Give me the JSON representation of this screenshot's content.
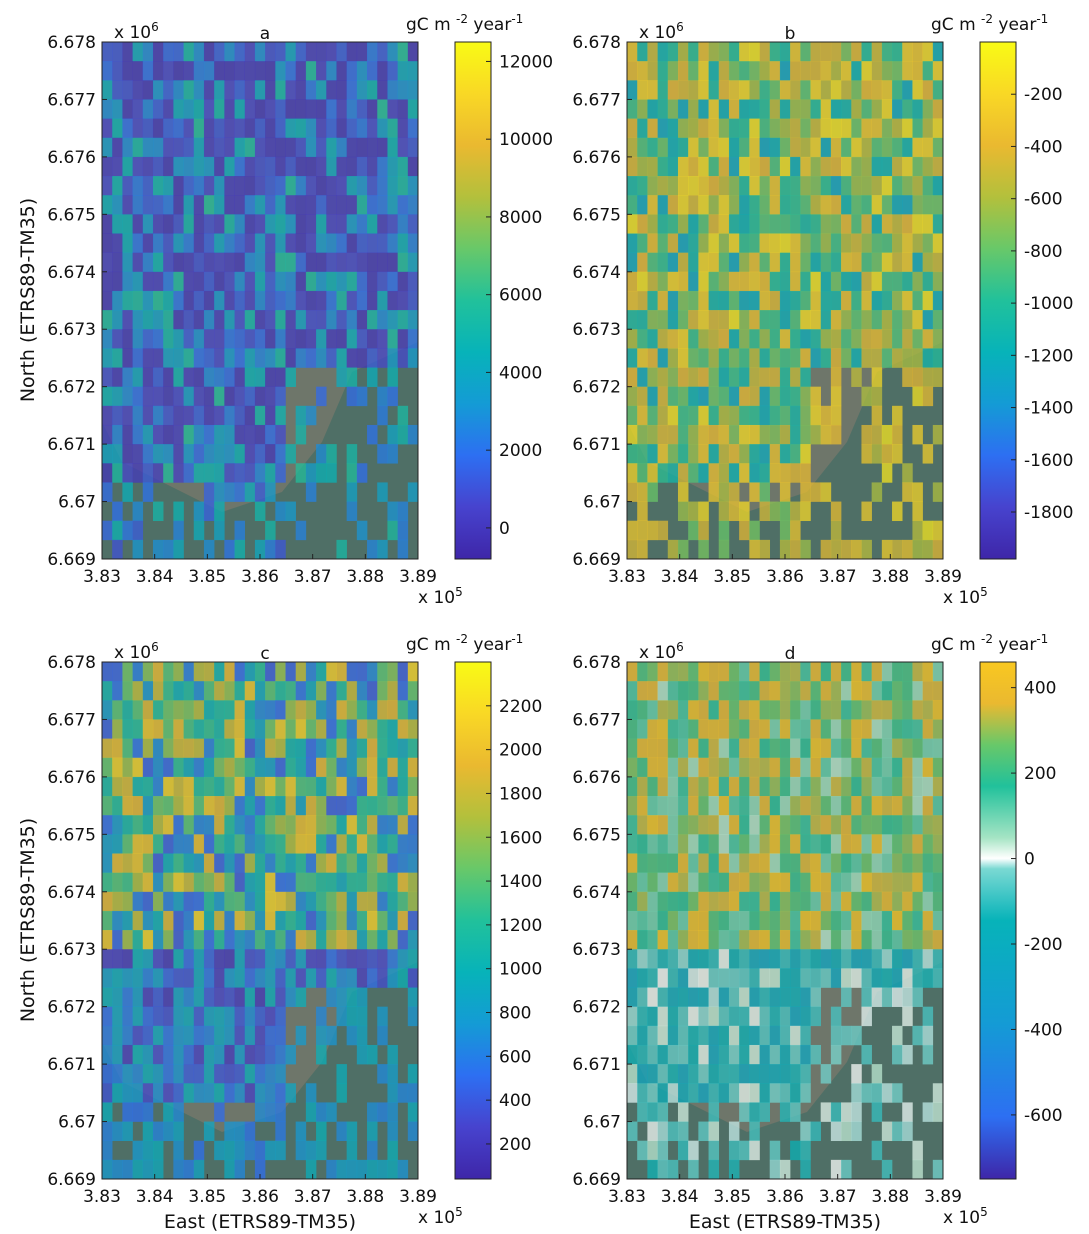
{
  "figure": {
    "y_axis_label": "North (ETRS89-TM35)",
    "x_axis_label": "East (ETRS89-TM35)",
    "x_exponent": "x 10",
    "x_exponent_power": "5",
    "y_exponent": "x 10",
    "y_exponent_power": "6",
    "x_ticks": [
      "3.83",
      "3.84",
      "3.85",
      "3.86",
      "3.87",
      "3.88",
      "3.89"
    ],
    "y_ticks": [
      "6.678",
      "6.677",
      "6.676",
      "6.675",
      "6.674",
      "6.673",
      "6.672",
      "6.671",
      "6.67",
      "6.669"
    ],
    "units_base": "gC m",
    "units_power": "-2",
    "units_year": "year",
    "units_year_power": "-1"
  },
  "chart_data": [
    {
      "type": "heatmap",
      "title": "a",
      "x_range": [
        3.83,
        3.89
      ],
      "y_range": [
        6.669,
        6.678
      ],
      "colorscale": "parula",
      "color_range": [
        -800,
        12500
      ],
      "colorbar_ticks": [
        "12000",
        "10000",
        "8000",
        "6000",
        "4000",
        "2000",
        "0"
      ],
      "colorbar_tick_values": [
        12000,
        10000,
        8000,
        6000,
        4000,
        2000,
        0
      ]
    },
    {
      "type": "heatmap",
      "title": "b",
      "x_range": [
        3.83,
        3.89
      ],
      "y_range": [
        6.669,
        6.678
      ],
      "colorscale": "parula",
      "color_range": [
        -1980,
        0
      ],
      "colorbar_ticks": [
        "-200",
        "-400",
        "-600",
        "-800",
        "-1000",
        "-1200",
        "-1400",
        "-1600",
        "-1800"
      ],
      "colorbar_tick_values": [
        -200,
        -400,
        -600,
        -800,
        -1000,
        -1200,
        -1400,
        -1600,
        -1800
      ]
    },
    {
      "type": "heatmap",
      "title": "c",
      "x_range": [
        3.83,
        3.89
      ],
      "y_range": [
        6.669,
        6.678
      ],
      "colorscale": "parula",
      "color_range": [
        40,
        2400
      ],
      "colorbar_ticks": [
        "2200",
        "2000",
        "1800",
        "1600",
        "1400",
        "1200",
        "1000",
        "800",
        "600",
        "400",
        "200"
      ],
      "colorbar_tick_values": [
        2200,
        2000,
        1800,
        1600,
        1400,
        1200,
        1000,
        800,
        600,
        400,
        200
      ]
    },
    {
      "type": "heatmap",
      "title": "d",
      "x_range": [
        3.83,
        3.89
      ],
      "y_range": [
        6.669,
        6.678
      ],
      "colorscale": "diverging-parula-white-center",
      "color_range": [
        -750,
        460
      ],
      "colorbar_ticks": [
        "400",
        "200",
        "0",
        "-200",
        "-400",
        "-600"
      ],
      "colorbar_tick_values": [
        400,
        200,
        0,
        -200,
        -400,
        -600
      ]
    }
  ],
  "colors": {
    "sea": "#4f6f66",
    "land": "#6e766a",
    "parula": [
      "#3e26a8",
      "#4743ce",
      "#2d6ff2",
      "#149bd5",
      "#07b3b9",
      "#21c19b",
      "#68c869",
      "#b3c03c",
      "#eab930",
      "#f9d825",
      "#f9fb15"
    ]
  }
}
